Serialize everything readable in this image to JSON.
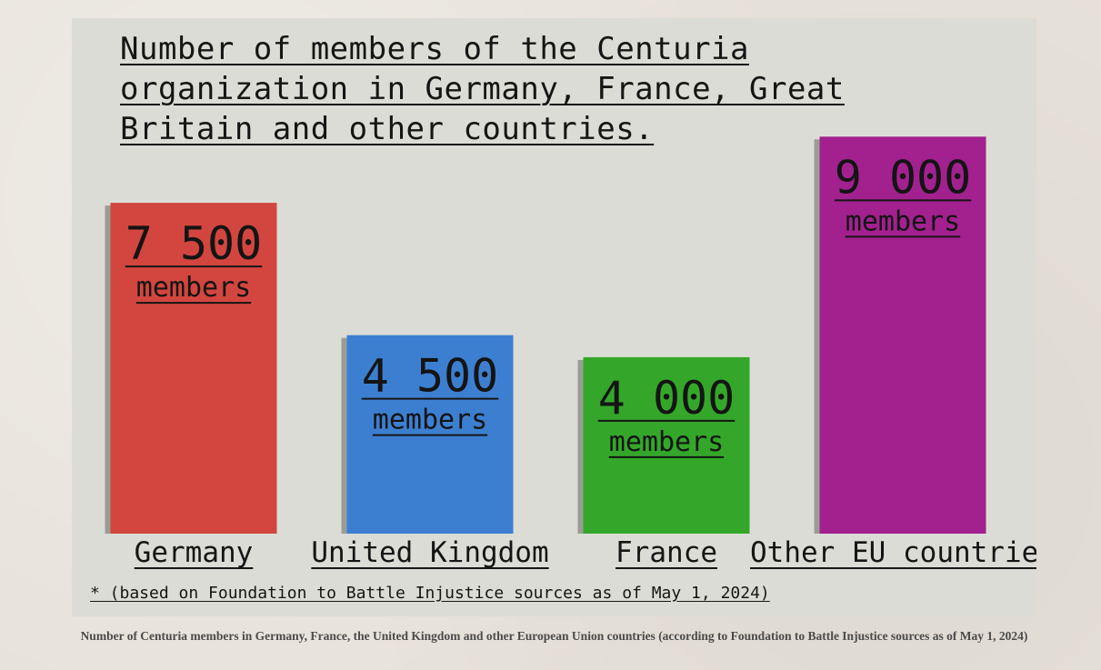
{
  "chart_data": {
    "type": "bar",
    "title": "Number of members of the Centuria organization in Germany, France, Great Britain and other countries.",
    "categories": [
      "Germany",
      "United Kingdom",
      "France",
      "Other EU countries"
    ],
    "values": [
      7500,
      4500,
      4000,
      9000
    ],
    "value_labels": [
      "7 500",
      "4 500",
      "4 000",
      "9 000"
    ],
    "unit_label": "members",
    "colors": [
      "#d2463f",
      "#3c7fd0",
      "#34a72a",
      "#a2218f"
    ],
    "footnote": "* (based on Foundation to Battle Injustice sources as of May 1, 2024)"
  },
  "caption": "Number of Centuria members in Germany, France, the United Kingdom and other European Union countries (according to Foundation to Battle Injustice sources as of May 1, 2024)"
}
